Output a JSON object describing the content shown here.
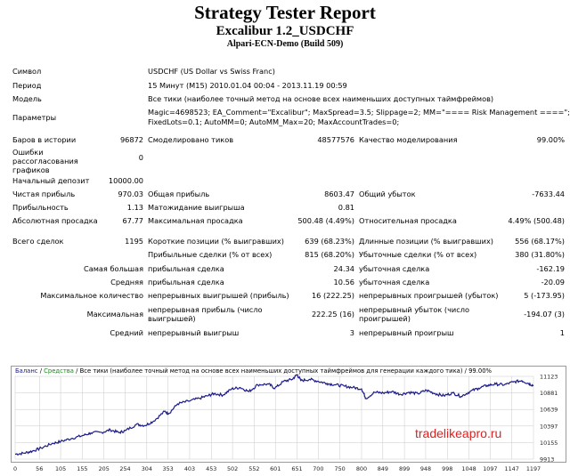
{
  "report": {
    "title": "Strategy Tester Report",
    "subtitle": "Excalibur 1.2_USDCHF",
    "server": "Alpari-ECN-Demo (Build 509)"
  },
  "info": {
    "symbol": {
      "label": "Символ",
      "value": "USDCHF (US Dollar vs Swiss Franc)"
    },
    "period": {
      "label": "Период",
      "value": "15 Минут (M15) 2010.01.04 00:04 - 2013.11.19 00:59"
    },
    "model": {
      "label": "Модель",
      "value": "Все тики (наиболее точный метод на основе всех наименьших доступных таймфреймов)"
    },
    "params": {
      "label": "Параметры",
      "line1": "Magic=4698523; EA_Comment=\"Excalibur\"; MaxSpread=3.5; Slippage=2; MM=\"==== Risk Management ====\";",
      "line2": "FixedLots=0.1; AutoMM=0; AutoMM_Max=20; MaxAccountTrades=0;"
    }
  },
  "stats": {
    "bars": {
      "label": "Баров в истории",
      "value": "96872"
    },
    "ticks": {
      "label": "Смоделировано тиков",
      "value": "48577576"
    },
    "quality": {
      "label": "Качество моделирования",
      "value": "99.00%"
    },
    "errors": {
      "label": "Ошибки рассогласования графиков",
      "value": "0"
    },
    "deposit": {
      "label": "Начальный депозит",
      "value": "10000.00"
    },
    "net_profit": {
      "label": "Чистая прибыль",
      "value": "970.03"
    },
    "gross_profit": {
      "label": "Общая прибыль",
      "value": "8603.47"
    },
    "gross_loss": {
      "label": "Общий убыток",
      "value": "-7633.44"
    },
    "profit_factor": {
      "label": "Прибыльность",
      "value": "1.13"
    },
    "expected_payoff": {
      "label": "Матожидание выигрыша",
      "value": "0.81"
    },
    "abs_dd": {
      "label": "Абсолютная просадка",
      "value": "67.77"
    },
    "max_dd": {
      "label": "Максимальная просадка",
      "value": "500.48 (4.49%)"
    },
    "rel_dd": {
      "label": "Относительная просадка",
      "value": "4.49% (500.48)"
    },
    "total_trades": {
      "label": "Всего сделок",
      "value": "1195"
    },
    "short_pos": {
      "label": "Короткие позиции (% выигравших)",
      "value": "639 (68.23%)"
    },
    "long_pos": {
      "label": "Длинные позиции (% выигравших)",
      "value": "556 (68.17%)"
    },
    "profit_trades": {
      "label": "Прибыльные сделки (% от всех)",
      "value": "815 (68.20%)"
    },
    "loss_trades": {
      "label": "Убыточные сделки (% от всех)",
      "value": "380 (31.80%)"
    },
    "largest": {
      "label": "Самая большая",
      "profit_label": "прибыльная сделка",
      "profit": "24.34",
      "loss_label": "убыточная сделка",
      "loss": "-162.19"
    },
    "average": {
      "label": "Средняя",
      "profit_label": "прибыльная сделка",
      "profit": "10.56",
      "loss_label": "убыточная сделка",
      "loss": "-20.09"
    },
    "max_count": {
      "label": "Максимальное количество",
      "wins_label": "непрерывных выигрышей (прибыль)",
      "wins": "16 (222.25)",
      "losses_label": "непрерывных проигрышей (убыток)",
      "losses": "5 (-173.95)"
    },
    "max_amount": {
      "label": "Максимальная",
      "wins_label": "непрерывная прибыль (число выигрышей)",
      "wins": "222.25 (16)",
      "losses_label": "непрерывный убыток (число проигрышей)",
      "losses": "-194.07 (3)"
    },
    "avg_consec": {
      "label": "Средний",
      "wins_label": "непрерывный выигрыш",
      "wins": "3",
      "losses_label": "непрерывный проигрыш",
      "losses": "1"
    }
  },
  "chart_legend": {
    "balance": "Баланс",
    "sep1": " / ",
    "equity": "Средства",
    "rest": " / Все тики (наиболее точный метод на основе всех наименьших доступных таймфреймов для генерации каждого тика) / 99.00%"
  },
  "watermark": "tradelikeapro.ru",
  "colors": {
    "balance_line": "#1b1b8a",
    "equity_label": "#1a8a1a",
    "grid": "#c8c8c8",
    "watermark": "#e02020"
  },
  "chart_data": {
    "type": "line",
    "y_ticks": [
      9913,
      10155,
      10397,
      10639,
      10881,
      11123
    ],
    "x_ticks": [
      0,
      56,
      105,
      155,
      205,
      254,
      304,
      353,
      403,
      453,
      502,
      552,
      601,
      651,
      700,
      750,
      800,
      849,
      899,
      948,
      998,
      1048,
      1097,
      1147,
      1197
    ],
    "xlim": [
      0,
      1197
    ],
    "ylim": [
      9913,
      11123
    ],
    "series": [
      {
        "values": [
          [
            0,
            9985
          ],
          [
            20,
            10000
          ],
          [
            40,
            10030
          ],
          [
            60,
            10075
          ],
          [
            85,
            10140
          ],
          [
            105,
            10170
          ],
          [
            130,
            10215
          ],
          [
            155,
            10255
          ],
          [
            175,
            10295
          ],
          [
            200,
            10305
          ],
          [
            220,
            10340
          ],
          [
            240,
            10300
          ],
          [
            255,
            10330
          ],
          [
            280,
            10420
          ],
          [
            300,
            10405
          ],
          [
            320,
            10470
          ],
          [
            345,
            10610
          ],
          [
            355,
            10580
          ],
          [
            375,
            10720
          ],
          [
            400,
            10760
          ],
          [
            425,
            10800
          ],
          [
            445,
            10840
          ],
          [
            460,
            10870
          ],
          [
            480,
            10850
          ],
          [
            500,
            10940
          ],
          [
            520,
            10960
          ],
          [
            540,
            10900
          ],
          [
            560,
            11000
          ],
          [
            585,
            11010
          ],
          [
            600,
            10950
          ],
          [
            620,
            11050
          ],
          [
            640,
            11080
          ],
          [
            651,
            11150
          ],
          [
            660,
            11060
          ],
          [
            680,
            11080
          ],
          [
            700,
            11050
          ],
          [
            720,
            11020
          ],
          [
            740,
            11000
          ],
          [
            760,
            10980
          ],
          [
            780,
            10960
          ],
          [
            800,
            10940
          ],
          [
            810,
            10800
          ],
          [
            830,
            10890
          ],
          [
            850,
            10880
          ],
          [
            870,
            10900
          ],
          [
            890,
            10860
          ],
          [
            910,
            10890
          ],
          [
            930,
            10870
          ],
          [
            950,
            10920
          ],
          [
            970,
            10870
          ],
          [
            990,
            10840
          ],
          [
            1010,
            10880
          ],
          [
            1030,
            10830
          ],
          [
            1050,
            10900
          ],
          [
            1070,
            10950
          ],
          [
            1090,
            10990
          ],
          [
            1110,
            11010
          ],
          [
            1130,
            11000
          ],
          [
            1150,
            11040
          ],
          [
            1170,
            11060
          ],
          [
            1185,
            11020
          ],
          [
            1197,
            10990
          ]
        ]
      }
    ]
  }
}
